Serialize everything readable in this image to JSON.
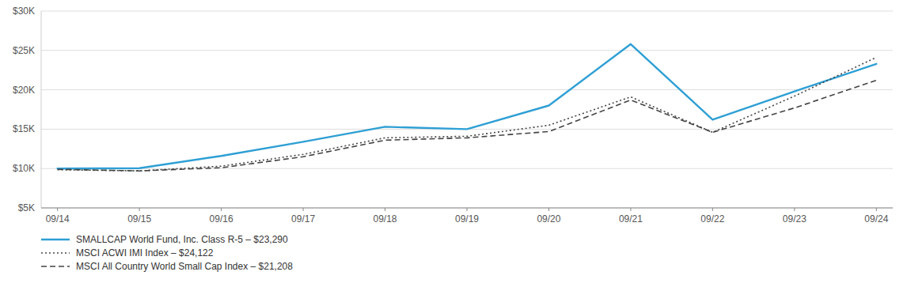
{
  "chart_data": {
    "type": "line",
    "categories": [
      "09/14",
      "09/15",
      "09/16",
      "09/17",
      "09/18",
      "09/19",
      "09/20",
      "09/21",
      "09/22",
      "09/23",
      "09/24"
    ],
    "series": [
      {
        "name": "SMALLCAP World Fund, Inc. Class R-5 – $23,290",
        "color": "#2e9fd4",
        "line_style": "solid",
        "values": [
          10000,
          10050,
          11600,
          13400,
          15300,
          15000,
          18000,
          25800,
          16200,
          19800,
          23290
        ]
      },
      {
        "name": "MSCI ACWI IMI Index – $24,122",
        "color": "#444444",
        "line_style": "dotted",
        "values": [
          9850,
          9700,
          10300,
          11800,
          13900,
          14100,
          15500,
          19100,
          14600,
          19200,
          24122
        ]
      },
      {
        "name": "MSCI All Country World Small Cap Index – $21,208",
        "color": "#444444",
        "line_style": "dashed",
        "values": [
          9900,
          9700,
          10100,
          11500,
          13600,
          13900,
          14700,
          18700,
          14600,
          17700,
          21208
        ]
      }
    ],
    "ylim": [
      5000,
      30000
    ],
    "yticks": [
      {
        "value": 5000,
        "label": "$5K"
      },
      {
        "value": 10000,
        "label": "$10K"
      },
      {
        "value": 15000,
        "label": "$15K"
      },
      {
        "value": 20000,
        "label": "$20K"
      },
      {
        "value": 25000,
        "label": "$25K"
      },
      {
        "value": 30000,
        "label": "$30K"
      }
    ],
    "grid": true,
    "legend": "bottom"
  }
}
